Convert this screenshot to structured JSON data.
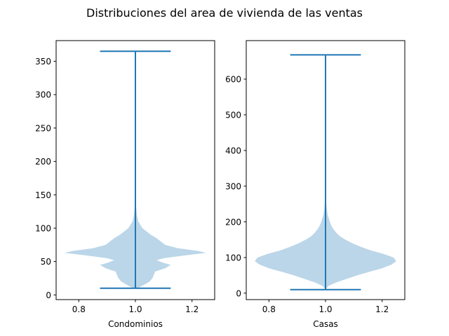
{
  "figure": {
    "title": "Distribuciones del area de vivienda de las ventas"
  },
  "colors": {
    "violin_fill": "#1f77b4",
    "violin_alpha": 0.3,
    "line": "#1f77b4",
    "axis": "#000000"
  },
  "chart_data": [
    {
      "type": "violin",
      "xlabel": "Condominios",
      "ylabel": "",
      "position": 1.0,
      "width": 0.5,
      "xlim": [
        0.72,
        1.28
      ],
      "ylim": [
        -7,
        381
      ],
      "xticks": [
        0.8,
        1.0,
        1.2
      ],
      "yticks": [
        0,
        50,
        100,
        150,
        200,
        250,
        300,
        350
      ],
      "min": 10,
      "max": 365,
      "density": [
        [
          10,
          0.03
        ],
        [
          15,
          0.12
        ],
        [
          20,
          0.2
        ],
        [
          25,
          0.24
        ],
        [
          30,
          0.26
        ],
        [
          35,
          0.28
        ],
        [
          40,
          0.42
        ],
        [
          45,
          0.5
        ],
        [
          48,
          0.4
        ],
        [
          52,
          0.3
        ],
        [
          55,
          0.4
        ],
        [
          60,
          0.76
        ],
        [
          63,
          1.0
        ],
        [
          66,
          0.88
        ],
        [
          70,
          0.6
        ],
        [
          75,
          0.42
        ],
        [
          80,
          0.36
        ],
        [
          85,
          0.3
        ],
        [
          90,
          0.22
        ],
        [
          95,
          0.16
        ],
        [
          100,
          0.1
        ],
        [
          105,
          0.07
        ],
        [
          110,
          0.04
        ],
        [
          120,
          0.02
        ],
        [
          130,
          0.012
        ],
        [
          140,
          0.006
        ],
        [
          150,
          0.0
        ]
      ]
    },
    {
      "type": "violin",
      "xlabel": "Casas",
      "ylabel": "",
      "position": 1.0,
      "width": 0.5,
      "xlim": [
        0.72,
        1.28
      ],
      "ylim": [
        -18,
        708
      ],
      "xticks": [
        0.8,
        1.0,
        1.2
      ],
      "yticks": [
        0,
        100,
        200,
        300,
        400,
        500,
        600
      ],
      "min": 10,
      "max": 668,
      "density": [
        [
          10,
          0.0
        ],
        [
          20,
          0.04
        ],
        [
          30,
          0.15
        ],
        [
          40,
          0.3
        ],
        [
          50,
          0.45
        ],
        [
          60,
          0.62
        ],
        [
          70,
          0.8
        ],
        [
          80,
          0.93
        ],
        [
          90,
          1.0
        ],
        [
          100,
          0.96
        ],
        [
          110,
          0.82
        ],
        [
          120,
          0.64
        ],
        [
          130,
          0.5
        ],
        [
          140,
          0.38
        ],
        [
          150,
          0.28
        ],
        [
          160,
          0.2
        ],
        [
          170,
          0.15
        ],
        [
          180,
          0.11
        ],
        [
          190,
          0.08
        ],
        [
          200,
          0.06
        ],
        [
          220,
          0.03
        ],
        [
          240,
          0.015
        ],
        [
          260,
          0.008
        ],
        [
          280,
          0.0
        ]
      ]
    }
  ]
}
